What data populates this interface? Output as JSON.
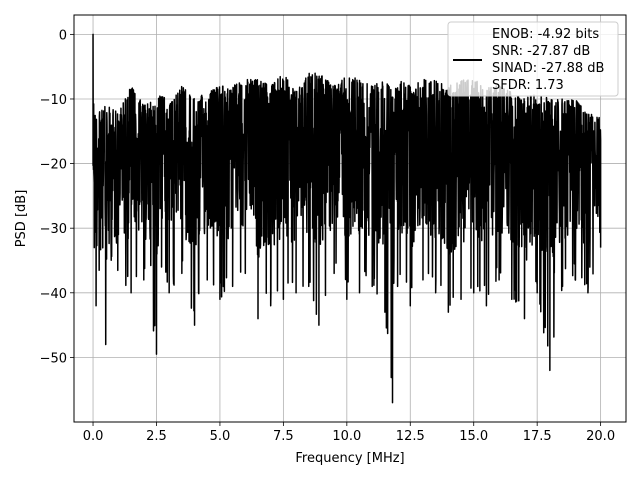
{
  "chart_data": {
    "type": "line",
    "title": "",
    "xlabel": "Frequency [MHz]",
    "ylabel": "PSD [dB]",
    "xlim": [
      -0.75,
      21.0
    ],
    "ylim": [
      -60.0,
      3.0
    ],
    "xticks": [
      0.0,
      2.5,
      5.0,
      7.5,
      10.0,
      12.5,
      15.0,
      17.5,
      20.0
    ],
    "xtick_labels": [
      "0.0",
      "2.5",
      "5.0",
      "7.5",
      "10.0",
      "12.5",
      "15.0",
      "17.5",
      "20.0"
    ],
    "yticks": [
      0,
      -10,
      -20,
      -30,
      -40,
      -50
    ],
    "ytick_labels": [
      "0",
      "−10",
      "−20",
      "−30",
      "−40",
      "−50"
    ],
    "grid": true,
    "legend_position": "top-right",
    "series": [
      {
        "color": "#000000",
        "description": "noise-like PSD trace across 0–20 MHz, dense band roughly -7 to -40 dB",
        "x": [
          0.0,
          0.05,
          0.12,
          0.3,
          0.5,
          1.0,
          1.5,
          2.0,
          2.5,
          2.7,
          3.0,
          3.5,
          4.0,
          4.5,
          5.0,
          5.5,
          6.0,
          6.5,
          7.0,
          7.5,
          8.0,
          8.5,
          8.9,
          9.5,
          10.0,
          10.5,
          11.0,
          11.5,
          11.8,
          12.0,
          12.5,
          13.0,
          13.5,
          14.0,
          14.5,
          15.0,
          15.5,
          16.0,
          16.5,
          17.0,
          17.5,
          18.0,
          18.5,
          19.0,
          19.5,
          20.0
        ],
        "y": [
          0.0,
          -33.0,
          -42.0,
          -29.0,
          -48.0,
          -31.0,
          -40.0,
          -38.0,
          -49.5,
          -36.0,
          -40.0,
          -37.0,
          -45.0,
          -38.0,
          -41.0,
          -39.0,
          -37.0,
          -44.0,
          -42.0,
          -41.0,
          -40.0,
          -39.0,
          -45.0,
          -37.0,
          -41.0,
          -40.0,
          -39.0,
          -43.0,
          -57.0,
          -39.0,
          -42.0,
          -38.0,
          -40.0,
          -43.0,
          -41.0,
          -40.0,
          -42.0,
          -38.0,
          -41.0,
          -44.0,
          -40.0,
          -52.0,
          -39.0,
          -38.0,
          -40.0,
          -33.0
        ],
        "upper_envelope": [
          -7.0,
          -12.0,
          -12.0,
          -12.0,
          -11.0,
          -12.0,
          -8.0,
          -11.0,
          -10.0,
          -9.0,
          -11.0,
          -8.0,
          -10.0,
          -9.0,
          -8.0,
          -8.0,
          -7.0,
          -7.0,
          -8.0,
          -6.0,
          -9.0,
          -6.0,
          -6.0,
          -8.0,
          -6.0,
          -7.0,
          -8.0,
          -7.0,
          -9.0,
          -7.0,
          -8.0,
          -7.0,
          -7.0,
          -8.0,
          -7.0,
          -7.0,
          -8.0,
          -8.0,
          -9.0,
          -10.0,
          -9.0,
          -10.0,
          -10.0,
          -10.0,
          -12.0,
          -13.0
        ],
        "lower_envelope": [
          -42.0,
          -33.0,
          -42.0,
          -35.0,
          -48.0,
          -38.0,
          -40.0,
          -38.0,
          -49.5,
          -36.0,
          -40.0,
          -37.0,
          -45.0,
          -38.0,
          -41.0,
          -39.0,
          -37.0,
          -44.0,
          -42.0,
          -41.0,
          -40.0,
          -39.0,
          -45.0,
          -37.0,
          -41.0,
          -40.0,
          -39.0,
          -43.0,
          -57.0,
          -39.0,
          -42.0,
          -38.0,
          -40.0,
          -43.0,
          -41.0,
          -40.0,
          -42.0,
          -38.0,
          -41.0,
          -44.0,
          -40.0,
          -52.0,
          -39.0,
          -38.0,
          -40.0,
          -33.0
        ]
      }
    ]
  },
  "legend": {
    "lines": [
      "ENOB: -4.92 bits",
      "SNR: -27.87 dB",
      "SINAD: -27.88 dB",
      "SFDR: 1.73"
    ]
  }
}
